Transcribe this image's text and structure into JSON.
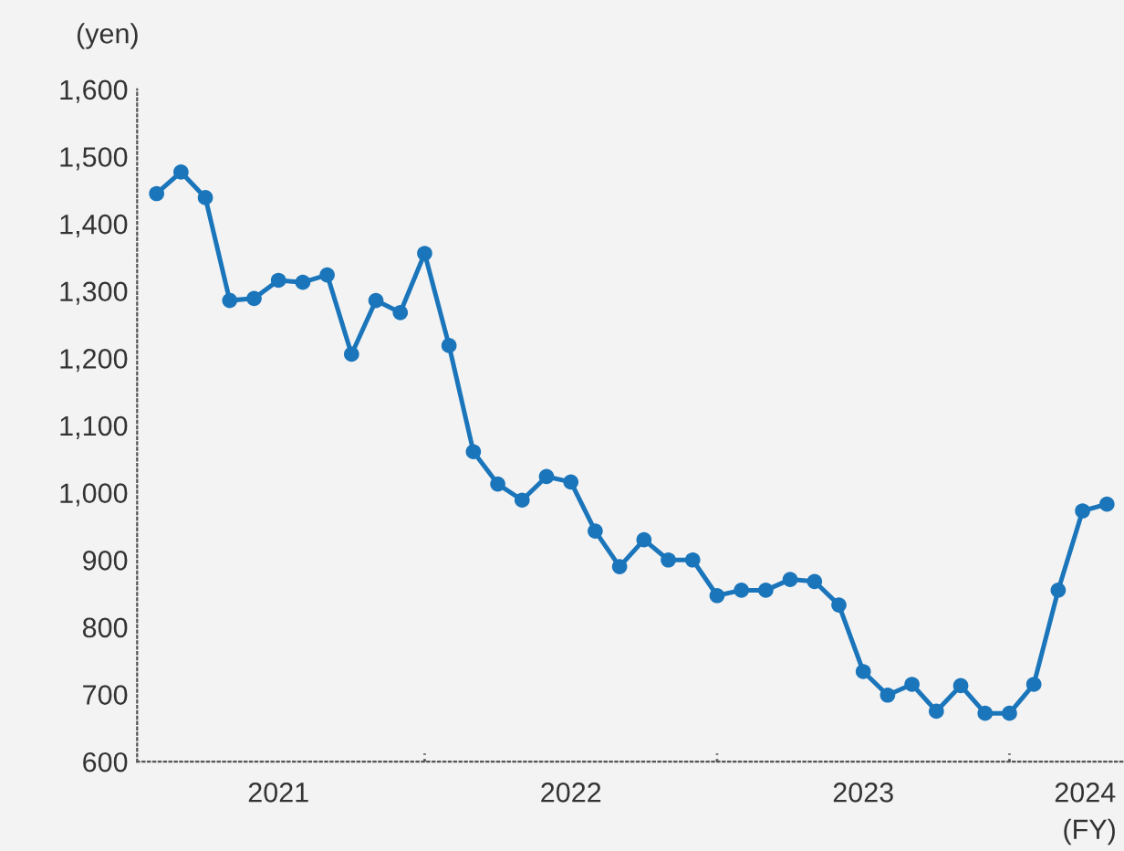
{
  "chart_data": {
    "type": "line",
    "ylabel": "(yen)",
    "xlabel": "(FY)",
    "categories": [
      null,
      null,
      null,
      null,
      null,
      null,
      null,
      null,
      null,
      null,
      null,
      null,
      null,
      null,
      null,
      null,
      null,
      null,
      null,
      null,
      null,
      null,
      null,
      null,
      null,
      null,
      null,
      null,
      null,
      null,
      null,
      null,
      null,
      null,
      null,
      null,
      null,
      null,
      null,
      null
    ],
    "annotations": [
      "2021",
      "2022",
      "2023",
      "2024"
    ],
    "series": [
      {
        "color": "#1a75bb",
        "values": [
          1445,
          1477,
          1439,
          1286,
          1289,
          1316,
          1313,
          1324,
          1206,
          1286,
          1268,
          1356,
          1219,
          1061,
          1013,
          989,
          1024,
          1016,
          943,
          890,
          930,
          900,
          900,
          847,
          855,
          855,
          871,
          868,
          833,
          734,
          699,
          715,
          675,
          713,
          672,
          672,
          715,
          855,
          973,
          983
        ]
      }
    ],
    "ylim": [
      600,
      1600
    ],
    "yticks": [
      {
        "value": 600,
        "label": "600"
      },
      {
        "value": 700,
        "label": "700"
      },
      {
        "value": 800,
        "label": "800"
      },
      {
        "value": 900,
        "label": "900"
      },
      {
        "value": 1000,
        "label": "1,000"
      },
      {
        "value": 1100,
        "label": "1,100"
      },
      {
        "value": 1200,
        "label": "1,200"
      },
      {
        "value": 1300,
        "label": "1,300"
      },
      {
        "value": 1400,
        "label": "1,400"
      },
      {
        "value": 1500,
        "label": "1,500"
      },
      {
        "value": 1600,
        "label": "1,600"
      }
    ],
    "marker": "circle",
    "line_style": "solid",
    "grid": false,
    "legend": false
  }
}
